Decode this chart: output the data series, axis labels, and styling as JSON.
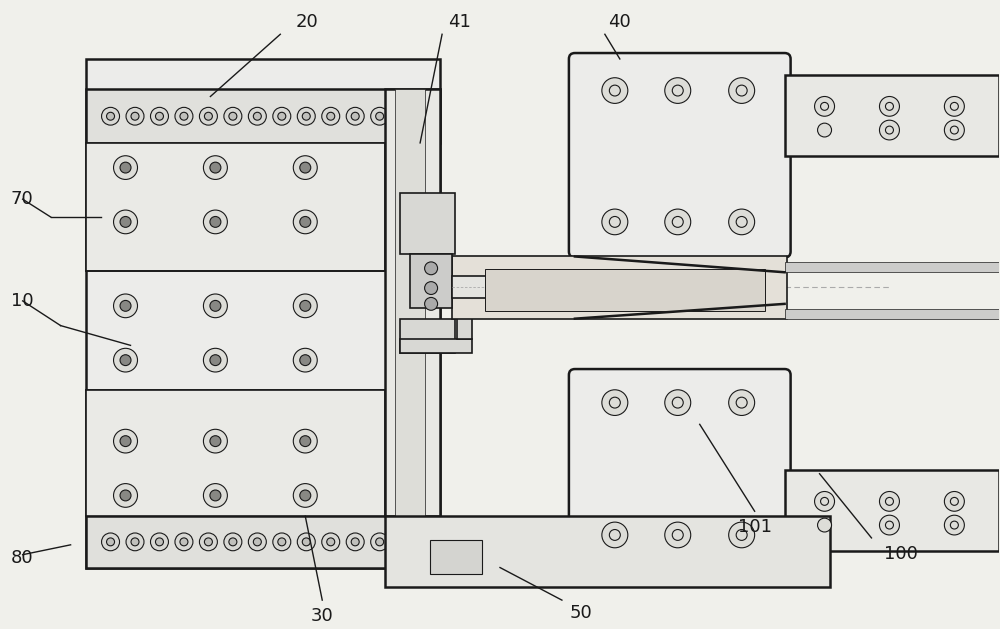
{
  "bg_color": "#f0f0eb",
  "line_color": "#1a1a1a",
  "dash_color": "#aaaaaa",
  "label_fontsize": 13,
  "ann_lw": 1.0
}
